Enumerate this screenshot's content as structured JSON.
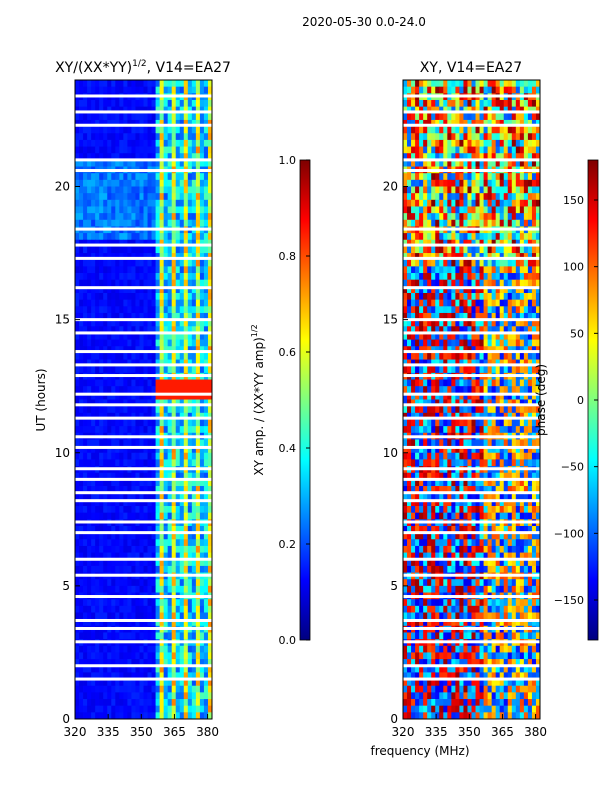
{
  "chart_data": {
    "type": "heatmap",
    "suptitle": "2020-05-30 0.0-24.0",
    "xlabel": "frequency (MHz)",
    "panels": [
      {
        "id": "amp",
        "title_main": "XY/(XX*YY)",
        "title_sup": "1/2",
        "title_rest": ", V14=EA27",
        "ylabel": "UT (hours)",
        "xlim": [
          320,
          382
        ],
        "ylim": [
          0,
          24
        ],
        "xticks": [
          320,
          335,
          350,
          365,
          380
        ],
        "yticks": [
          0,
          5,
          10,
          15,
          20
        ],
        "colorbar": {
          "label_main": "XY amp. / (XX*YY amp)",
          "label_sup": "1/2",
          "range": [
            0.0,
            1.0
          ],
          "ticks": [
            "0.0",
            "0.2",
            "0.4",
            "0.6",
            "0.8",
            "1.0"
          ],
          "tick_values": [
            0.0,
            0.2,
            0.4,
            0.6,
            0.8,
            1.0
          ]
        }
      },
      {
        "id": "phase",
        "title_main": "XY, V14=EA27",
        "ylabel": "",
        "xlim": [
          320,
          382
        ],
        "ylim": [
          0,
          24
        ],
        "xticks": [
          320,
          335,
          350,
          365,
          380
        ],
        "yticks": [
          0,
          5,
          10,
          15,
          20
        ],
        "colorbar": {
          "label_main": "phase (deg)",
          "range": [
            -180,
            180
          ],
          "ticks": [
            "150",
            "100",
            "50",
            "0",
            "−50",
            "−100",
            "−150"
          ],
          "tick_values": [
            150,
            100,
            50,
            0,
            -50,
            -100,
            -150
          ]
        }
      }
    ],
    "flagged_ut_hours": [
      1.5,
      2.0,
      2.9,
      3.4,
      3.7,
      4.6,
      5.4,
      6.0,
      7.0,
      7.4,
      8.2,
      8.5,
      9.0,
      9.4,
      10.2,
      10.6,
      11.3,
      11.8,
      12.2,
      12.9,
      13.3,
      13.8,
      14.5,
      15.0,
      16.2,
      17.3,
      17.8,
      18.4,
      20.6,
      21.0,
      22.3,
      22.8,
      23.4
    ],
    "rfi_band_mhz": [
      357,
      382
    ]
  }
}
